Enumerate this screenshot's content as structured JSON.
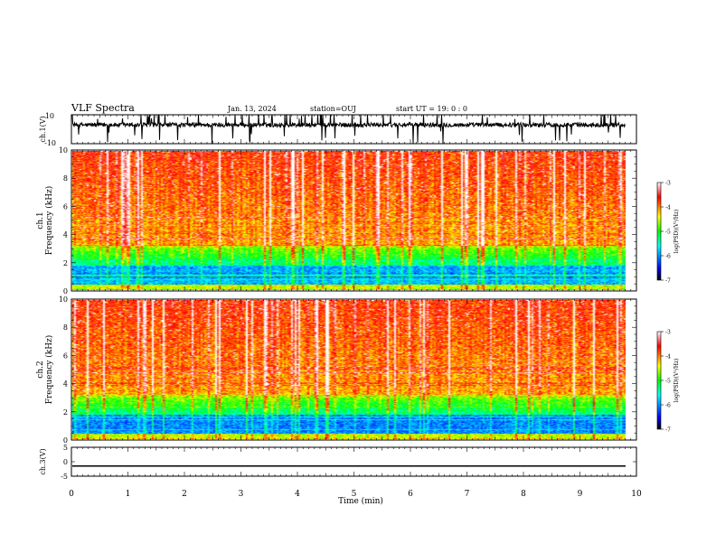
{
  "header": {
    "title": "VLF Spectra",
    "date": "Jan. 13, 2024",
    "station": "station=OUJ",
    "start": "start  UT =   19: 0  : 0"
  },
  "chart_data": [
    {
      "type": "line",
      "panel": "ch1-waveform",
      "ylabel": "ch.1(V)",
      "ylim": [
        -10,
        10
      ],
      "yticks": [
        -10,
        10
      ],
      "xlim": [
        0,
        10
      ],
      "baseline": 3
    },
    {
      "type": "heatmap",
      "panel": "ch1-spectrogram",
      "ylabel": "ch.1\nFrequency (kHz)",
      "ylim": [
        0,
        10
      ],
      "yticks": [
        0,
        2,
        4,
        6,
        8,
        10
      ],
      "xlim": [
        0,
        10
      ],
      "data_end_min": 9.8,
      "colorbar": {
        "label": "log(PSD)(V²/Hz)",
        "ticks": [
          -3,
          -4,
          -5,
          -6,
          -7
        ],
        "range": [
          -7,
          -3
        ]
      }
    },
    {
      "type": "heatmap",
      "panel": "ch2-spectrogram",
      "ylabel": "ch.2\nFrequency (kHz)",
      "ylim": [
        0,
        10
      ],
      "yticks": [
        0,
        2,
        4,
        6,
        8,
        10
      ],
      "xlim": [
        0,
        10
      ],
      "data_end_min": 9.8,
      "colorbar": {
        "label": "log(PSD)(V²/Hz)",
        "ticks": [
          -3,
          -4,
          -5,
          -6,
          -7
        ],
        "range": [
          -7,
          -3
        ]
      }
    },
    {
      "type": "line",
      "panel": "ch3-waveform",
      "ylabel": "ch.3(V)",
      "ylim": [
        -5,
        5
      ],
      "yticks": [
        -5,
        0,
        5
      ],
      "xlim": [
        0,
        10
      ],
      "values_constant": -1.5
    }
  ],
  "xaxis": {
    "label": "Time  (min)",
    "ticks": [
      0,
      1,
      2,
      3,
      4,
      5,
      6,
      7,
      8,
      9,
      10
    ]
  },
  "colormap": [
    "#000000",
    "#0000ff",
    "#00ffff",
    "#00ff00",
    "#ffff00",
    "#ff0000",
    "#ffffff"
  ]
}
